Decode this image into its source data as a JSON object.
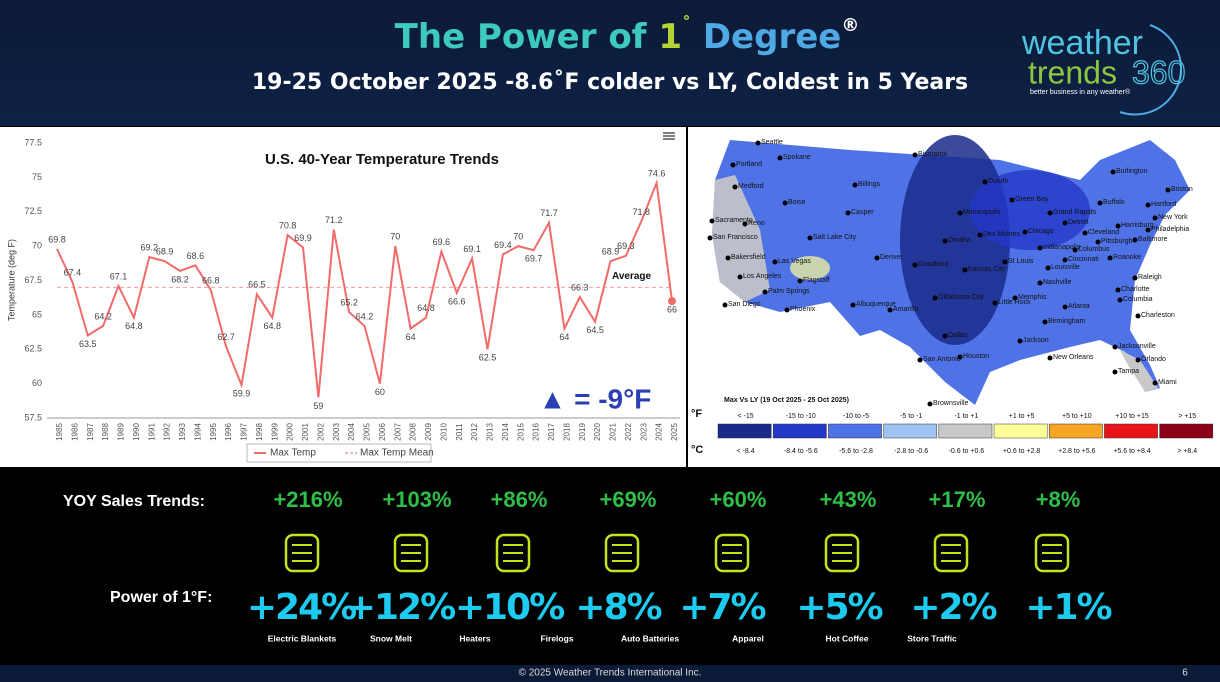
{
  "header": {
    "title_parts": [
      {
        "text": "The Power of ",
        "color": "#3ec9c0"
      },
      {
        "text": "1",
        "color": "#b5d334"
      },
      {
        "text": "˚",
        "color": "#b5d334"
      },
      {
        "text": " Degree",
        "color": "#4fa9e4"
      },
      {
        "text": "®",
        "color": "#ffffff"
      }
    ],
    "subtitle": "19-25 October 2025 -8.6˚F colder vs LY, Coldest in 5 Years",
    "logo": {
      "word1": "weather",
      "word2": "trends",
      "number": "360",
      "tagline": "better business in any weather®"
    }
  },
  "chart_data": {
    "type": "line",
    "title": "U.S. 40-Year Temperature Trends",
    "y_label": "Temperature (deg F)",
    "categories": [
      "1985",
      "1986",
      "1987",
      "1988",
      "1989",
      "1990",
      "1991",
      "1992",
      "1993",
      "1994",
      "1995",
      "1996",
      "1997",
      "1998",
      "1999",
      "2000",
      "2001",
      "2002",
      "2003",
      "2004",
      "2005",
      "2006",
      "2007",
      "2008",
      "2009",
      "2010",
      "2011",
      "2012",
      "2013",
      "2014",
      "2015",
      "2016",
      "2017",
      "2018",
      "2019",
      "2020",
      "2021",
      "2022",
      "2023",
      "2024",
      "2025"
    ],
    "series": [
      {
        "name": "Max Temp",
        "color": "#f26b6b",
        "values": [
          69.8,
          67.4,
          63.5,
          64.2,
          67.1,
          64.8,
          69.2,
          68.9,
          68.2,
          68.6,
          66.8,
          62.7,
          59.9,
          66.5,
          64.8,
          70.8,
          69.9,
          59,
          71.2,
          65.2,
          64.2,
          60,
          70,
          64,
          64.8,
          69.6,
          66.6,
          69.1,
          62.5,
          69.4,
          70,
          69.7,
          71.7,
          64,
          66.3,
          64.5,
          68.9,
          69.3,
          71.8,
          74.6,
          66
        ]
      },
      {
        "name": "Max Temp Mean",
        "color": "#f5a0a0",
        "value": 67
      }
    ],
    "mean_label": "Average",
    "callout": "▲ = -9°F",
    "callout_color": "#2a3fb5",
    "ylim": [
      57.5,
      77.5
    ],
    "yticks": [
      57.5,
      60,
      62.5,
      65,
      67.5,
      70,
      72.5,
      75,
      77.5
    ],
    "grid": false,
    "legend": "bottom"
  },
  "map": {
    "legend_title": "Max Vs LY (19 Oct 2025 - 25 Oct 2025)",
    "f_unit": "°F",
    "c_unit": "°C",
    "bins_f": [
      "< -15",
      "-15 to -10",
      "-10 to -5",
      "-5 to -1",
      "-1 to +1",
      "+1 to +5",
      "+5 to +10",
      "+10 to +15",
      "> +15"
    ],
    "bins_c": [
      "< -8.4",
      "-8.4 to -5.6",
      "-5.6 to -2.8",
      "-2.8 to -0.6",
      "-0.6 to +0.6",
      "+0.6 to +2.8",
      "+2.8 to +5.6",
      "+5.6 to +8.4",
      "> +8.4"
    ],
    "colors": [
      "#1a2a8a",
      "#2338c8",
      "#4f73e6",
      "#9ec4f4",
      "#c8c8c8",
      "#ffff99",
      "#f5a623",
      "#e8141a",
      "#8b0016"
    ],
    "cities": [
      "Seattle",
      "Portland",
      "Spokane",
      "Medford",
      "Boise",
      "Billings",
      "Bismarck",
      "Duluth",
      "Burlington",
      "Boston",
      "Hartford",
      "New York",
      "Philadelphia",
      "Baltimore",
      "Buffalo",
      "Green Bay",
      "Minneapolis",
      "Grand Rapids",
      "Detroit",
      "Cleveland",
      "Pittsburgh",
      "Harrisburg",
      "Casper",
      "Sacramento",
      "Reno",
      "San Francisco",
      "Salt Lake City",
      "Denver",
      "Omaha",
      "Des Moines",
      "Chicago",
      "Indianapolis",
      "Columbus",
      "Cincinnati",
      "Roanoke",
      "Raleigh",
      "Charlotte",
      "Columbia",
      "Charleston",
      "Goodland",
      "Kansas City",
      "St Louis",
      "Louisville",
      "Nashville",
      "Atlanta",
      "Birmingham",
      "Memphis",
      "Little Rock",
      "Oklahoma City",
      "Albuquerque",
      "Las Vegas",
      "Flagstaff",
      "Bakersfield",
      "Los Angeles",
      "Palm Springs",
      "San Diego",
      "Phoenix",
      "Amarillo",
      "Dallas",
      "Jackson",
      "San Antonio",
      "Houston",
      "New Orleans",
      "Jacksonville",
      "Orlando",
      "Tampa",
      "Miami",
      "Brownsville"
    ]
  },
  "sales": {
    "yoy_label": "YOY Sales Trends:",
    "power_label": "Power of 1°F:",
    "items": [
      {
        "category": "Electric Blankets",
        "yoy": "+216%",
        "power": "+24%"
      },
      {
        "category": "Snow Melt",
        "yoy": "+103%",
        "power": "+12%"
      },
      {
        "category": "Heaters",
        "yoy": "+86%",
        "power": "+10%"
      },
      {
        "category": "Firelogs",
        "yoy": "+69%",
        "power": "+8%"
      },
      {
        "category": "Auto Batteries",
        "yoy": "+60%",
        "power": "+7%"
      },
      {
        "category": "Apparel",
        "yoy": "+43%",
        "power": "+5%"
      },
      {
        "category": "Hot Coffee",
        "yoy": "+17%",
        "power": "+2%"
      },
      {
        "category": "Store Traffic",
        "yoy": "+8%",
        "power": "+1%"
      }
    ]
  },
  "footer": {
    "copyright": "© 2025 Weather Trends International Inc.",
    "page": "6"
  }
}
